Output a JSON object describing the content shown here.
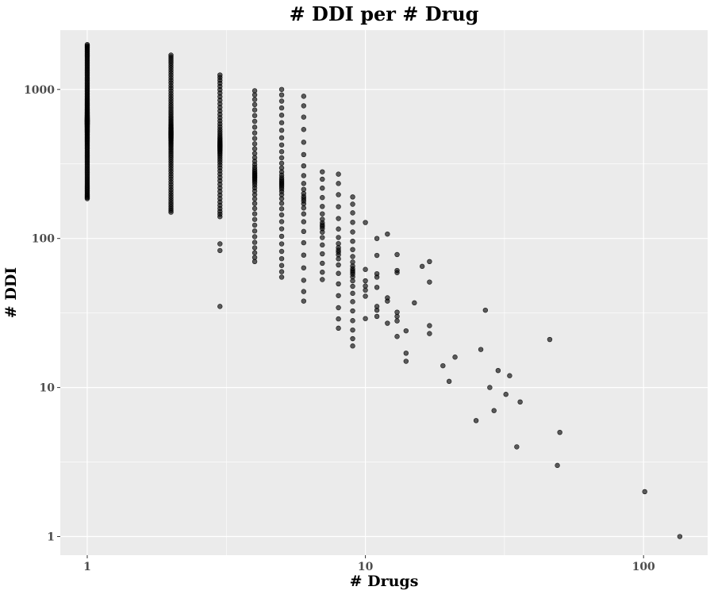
{
  "chart_data": {
    "type": "scatter",
    "title": "# DDI per # Drug",
    "xlabel": "# Drugs",
    "ylabel": "# DDI",
    "x_scale": "log10",
    "y_scale": "log10",
    "xlim": [
      0.8,
      170
    ],
    "ylim": [
      0.75,
      2500
    ],
    "x_ticks": [
      1,
      10,
      100
    ],
    "x_tick_labels": [
      "1",
      "10",
      "100"
    ],
    "y_ticks": [
      1,
      10,
      100,
      1000
    ],
    "y_tick_labels": [
      "1",
      "10",
      "100",
      "1000"
    ],
    "grid": true,
    "legend": "none",
    "point_color": "#000000",
    "background_color": "#ebebeb",
    "columns": [
      {
        "x": 1,
        "ymin": 185,
        "ymax": 2000,
        "n": 140
      },
      {
        "x": 2,
        "ymin": 150,
        "ymax": 1700,
        "n": 90
      },
      {
        "x": 3,
        "ymin": 140,
        "ymax": 1250,
        "n": 60
      },
      {
        "x": 4,
        "ymin": 70,
        "ymax": 980,
        "n": 45
      },
      {
        "x": 5,
        "ymin": 55,
        "ymax": 1000,
        "n": 38
      },
      {
        "x": 6,
        "ymin": 38,
        "ymax": 900,
        "n": 25
      },
      {
        "x": 7,
        "ymin": 53,
        "ymax": 280,
        "n": 18
      },
      {
        "x": 8,
        "ymin": 25,
        "ymax": 270,
        "n": 20
      },
      {
        "x": 9,
        "ymin": 19,
        "ymax": 190,
        "n": 24
      }
    ],
    "points": [
      {
        "x": 3,
        "y": 92
      },
      {
        "x": 3,
        "y": 83
      },
      {
        "x": 3,
        "y": 35
      },
      {
        "x": 10,
        "y": 128
      },
      {
        "x": 10,
        "y": 62
      },
      {
        "x": 10,
        "y": 52
      },
      {
        "x": 10,
        "y": 48
      },
      {
        "x": 10,
        "y": 45
      },
      {
        "x": 10,
        "y": 41
      },
      {
        "x": 10,
        "y": 29
      },
      {
        "x": 11,
        "y": 100
      },
      {
        "x": 11,
        "y": 77
      },
      {
        "x": 11,
        "y": 58
      },
      {
        "x": 11,
        "y": 55
      },
      {
        "x": 11,
        "y": 47
      },
      {
        "x": 11,
        "y": 35
      },
      {
        "x": 11,
        "y": 33
      },
      {
        "x": 11,
        "y": 30
      },
      {
        "x": 12,
        "y": 107
      },
      {
        "x": 12,
        "y": 40
      },
      {
        "x": 12,
        "y": 38
      },
      {
        "x": 12,
        "y": 27
      },
      {
        "x": 13,
        "y": 78
      },
      {
        "x": 13,
        "y": 61
      },
      {
        "x": 13,
        "y": 59
      },
      {
        "x": 13,
        "y": 32
      },
      {
        "x": 13,
        "y": 30
      },
      {
        "x": 13,
        "y": 28
      },
      {
        "x": 13,
        "y": 22
      },
      {
        "x": 14,
        "y": 24
      },
      {
        "x": 14,
        "y": 17
      },
      {
        "x": 14,
        "y": 15
      },
      {
        "x": 15,
        "y": 37
      },
      {
        "x": 16,
        "y": 65
      },
      {
        "x": 17,
        "y": 70
      },
      {
        "x": 17,
        "y": 51
      },
      {
        "x": 17,
        "y": 26
      },
      {
        "x": 17,
        "y": 23
      },
      {
        "x": 19,
        "y": 14
      },
      {
        "x": 20,
        "y": 11
      },
      {
        "x": 21,
        "y": 16
      },
      {
        "x": 25,
        "y": 6
      },
      {
        "x": 26,
        "y": 18
      },
      {
        "x": 27,
        "y": 33
      },
      {
        "x": 28,
        "y": 10
      },
      {
        "x": 29,
        "y": 7
      },
      {
        "x": 30,
        "y": 13
      },
      {
        "x": 32,
        "y": 9
      },
      {
        "x": 33,
        "y": 12
      },
      {
        "x": 35,
        "y": 4
      },
      {
        "x": 36,
        "y": 8
      },
      {
        "x": 46,
        "y": 21
      },
      {
        "x": 49,
        "y": 3
      },
      {
        "x": 50,
        "y": 5
      },
      {
        "x": 101,
        "y": 2
      },
      {
        "x": 135,
        "y": 1
      }
    ]
  }
}
